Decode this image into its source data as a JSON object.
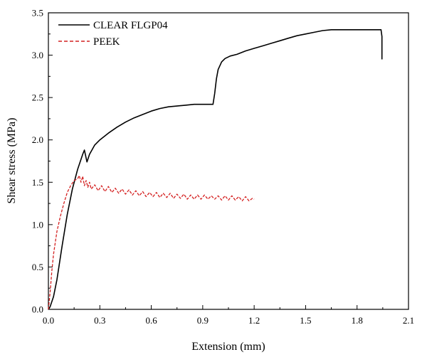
{
  "chart_data": {
    "type": "line",
    "title": "",
    "xlabel": "Extension (mm)",
    "ylabel": "Shear stress (MPa)",
    "xlim": [
      0.0,
      2.1
    ],
    "ylim": [
      0.0,
      3.5
    ],
    "xticks": [
      "0.0",
      "0.3",
      "0.6",
      "0.9",
      "1.2",
      "1.5",
      "1.8",
      "2.1"
    ],
    "yticks": [
      "0.0",
      "0.5",
      "1.0",
      "1.5",
      "2.0",
      "2.5",
      "3.0",
      "3.5"
    ],
    "legend_position": "top-left",
    "grid": false,
    "series": [
      {
        "name": "CLEAR FLGP04",
        "color": "#000000",
        "style": "solid",
        "points": [
          [
            0.0,
            0.0
          ],
          [
            0.01,
            0.03
          ],
          [
            0.03,
            0.15
          ],
          [
            0.05,
            0.35
          ],
          [
            0.08,
            0.75
          ],
          [
            0.11,
            1.12
          ],
          [
            0.14,
            1.42
          ],
          [
            0.17,
            1.65
          ],
          [
            0.2,
            1.83
          ],
          [
            0.21,
            1.88
          ],
          [
            0.225,
            1.74
          ],
          [
            0.24,
            1.83
          ],
          [
            0.27,
            1.94
          ],
          [
            0.3,
            2.0
          ],
          [
            0.35,
            2.08
          ],
          [
            0.4,
            2.15
          ],
          [
            0.45,
            2.21
          ],
          [
            0.5,
            2.26
          ],
          [
            0.55,
            2.3
          ],
          [
            0.6,
            2.34
          ],
          [
            0.65,
            2.37
          ],
          [
            0.7,
            2.39
          ],
          [
            0.75,
            2.4
          ],
          [
            0.8,
            2.41
          ],
          [
            0.85,
            2.42
          ],
          [
            0.9,
            2.42
          ],
          [
            0.96,
            2.42
          ],
          [
            0.97,
            2.55
          ],
          [
            0.98,
            2.72
          ],
          [
            0.99,
            2.83
          ],
          [
            1.01,
            2.92
          ],
          [
            1.03,
            2.96
          ],
          [
            1.06,
            2.99
          ],
          [
            1.1,
            3.01
          ],
          [
            1.15,
            3.05
          ],
          [
            1.2,
            3.08
          ],
          [
            1.25,
            3.11
          ],
          [
            1.3,
            3.14
          ],
          [
            1.35,
            3.17
          ],
          [
            1.4,
            3.2
          ],
          [
            1.45,
            3.23
          ],
          [
            1.5,
            3.25
          ],
          [
            1.55,
            3.27
          ],
          [
            1.6,
            3.29
          ],
          [
            1.65,
            3.3
          ],
          [
            1.7,
            3.3
          ],
          [
            1.75,
            3.3
          ],
          [
            1.8,
            3.3
          ],
          [
            1.85,
            3.3
          ],
          [
            1.9,
            3.3
          ],
          [
            1.94,
            3.3
          ],
          [
            1.945,
            3.22
          ],
          [
            1.945,
            2.95
          ]
        ]
      },
      {
        "name": "PEEK",
        "color": "#d42020",
        "style": "dashed",
        "points": [
          [
            0.0,
            0.0
          ],
          [
            0.01,
            0.2
          ],
          [
            0.02,
            0.45
          ],
          [
            0.03,
            0.65
          ],
          [
            0.05,
            0.92
          ],
          [
            0.07,
            1.1
          ],
          [
            0.09,
            1.25
          ],
          [
            0.11,
            1.38
          ],
          [
            0.13,
            1.46
          ],
          [
            0.15,
            1.52
          ],
          [
            0.17,
            1.54
          ],
          [
            0.18,
            1.58
          ],
          [
            0.19,
            1.5
          ],
          [
            0.2,
            1.57
          ],
          [
            0.21,
            1.46
          ],
          [
            0.22,
            1.52
          ],
          [
            0.23,
            1.44
          ],
          [
            0.24,
            1.5
          ],
          [
            0.25,
            1.42
          ],
          [
            0.27,
            1.47
          ],
          [
            0.29,
            1.4
          ],
          [
            0.31,
            1.46
          ],
          [
            0.33,
            1.39
          ],
          [
            0.35,
            1.45
          ],
          [
            0.37,
            1.38
          ],
          [
            0.39,
            1.43
          ],
          [
            0.41,
            1.37
          ],
          [
            0.43,
            1.42
          ],
          [
            0.45,
            1.36
          ],
          [
            0.47,
            1.41
          ],
          [
            0.49,
            1.35
          ],
          [
            0.51,
            1.4
          ],
          [
            0.53,
            1.34
          ],
          [
            0.55,
            1.39
          ],
          [
            0.57,
            1.33
          ],
          [
            0.59,
            1.38
          ],
          [
            0.61,
            1.33
          ],
          [
            0.63,
            1.38
          ],
          [
            0.65,
            1.32
          ],
          [
            0.67,
            1.37
          ],
          [
            0.69,
            1.32
          ],
          [
            0.71,
            1.37
          ],
          [
            0.73,
            1.31
          ],
          [
            0.75,
            1.36
          ],
          [
            0.77,
            1.31
          ],
          [
            0.79,
            1.36
          ],
          [
            0.81,
            1.3
          ],
          [
            0.83,
            1.35
          ],
          [
            0.85,
            1.3
          ],
          [
            0.87,
            1.35
          ],
          [
            0.89,
            1.3
          ],
          [
            0.91,
            1.35
          ],
          [
            0.93,
            1.3
          ],
          [
            0.95,
            1.34
          ],
          [
            0.97,
            1.3
          ],
          [
            0.99,
            1.34
          ],
          [
            1.01,
            1.29
          ],
          [
            1.03,
            1.34
          ],
          [
            1.05,
            1.29
          ],
          [
            1.07,
            1.34
          ],
          [
            1.09,
            1.29
          ],
          [
            1.11,
            1.33
          ],
          [
            1.13,
            1.28
          ],
          [
            1.15,
            1.33
          ],
          [
            1.17,
            1.28
          ],
          [
            1.19,
            1.31
          ],
          [
            1.2,
            1.3
          ]
        ]
      }
    ]
  }
}
